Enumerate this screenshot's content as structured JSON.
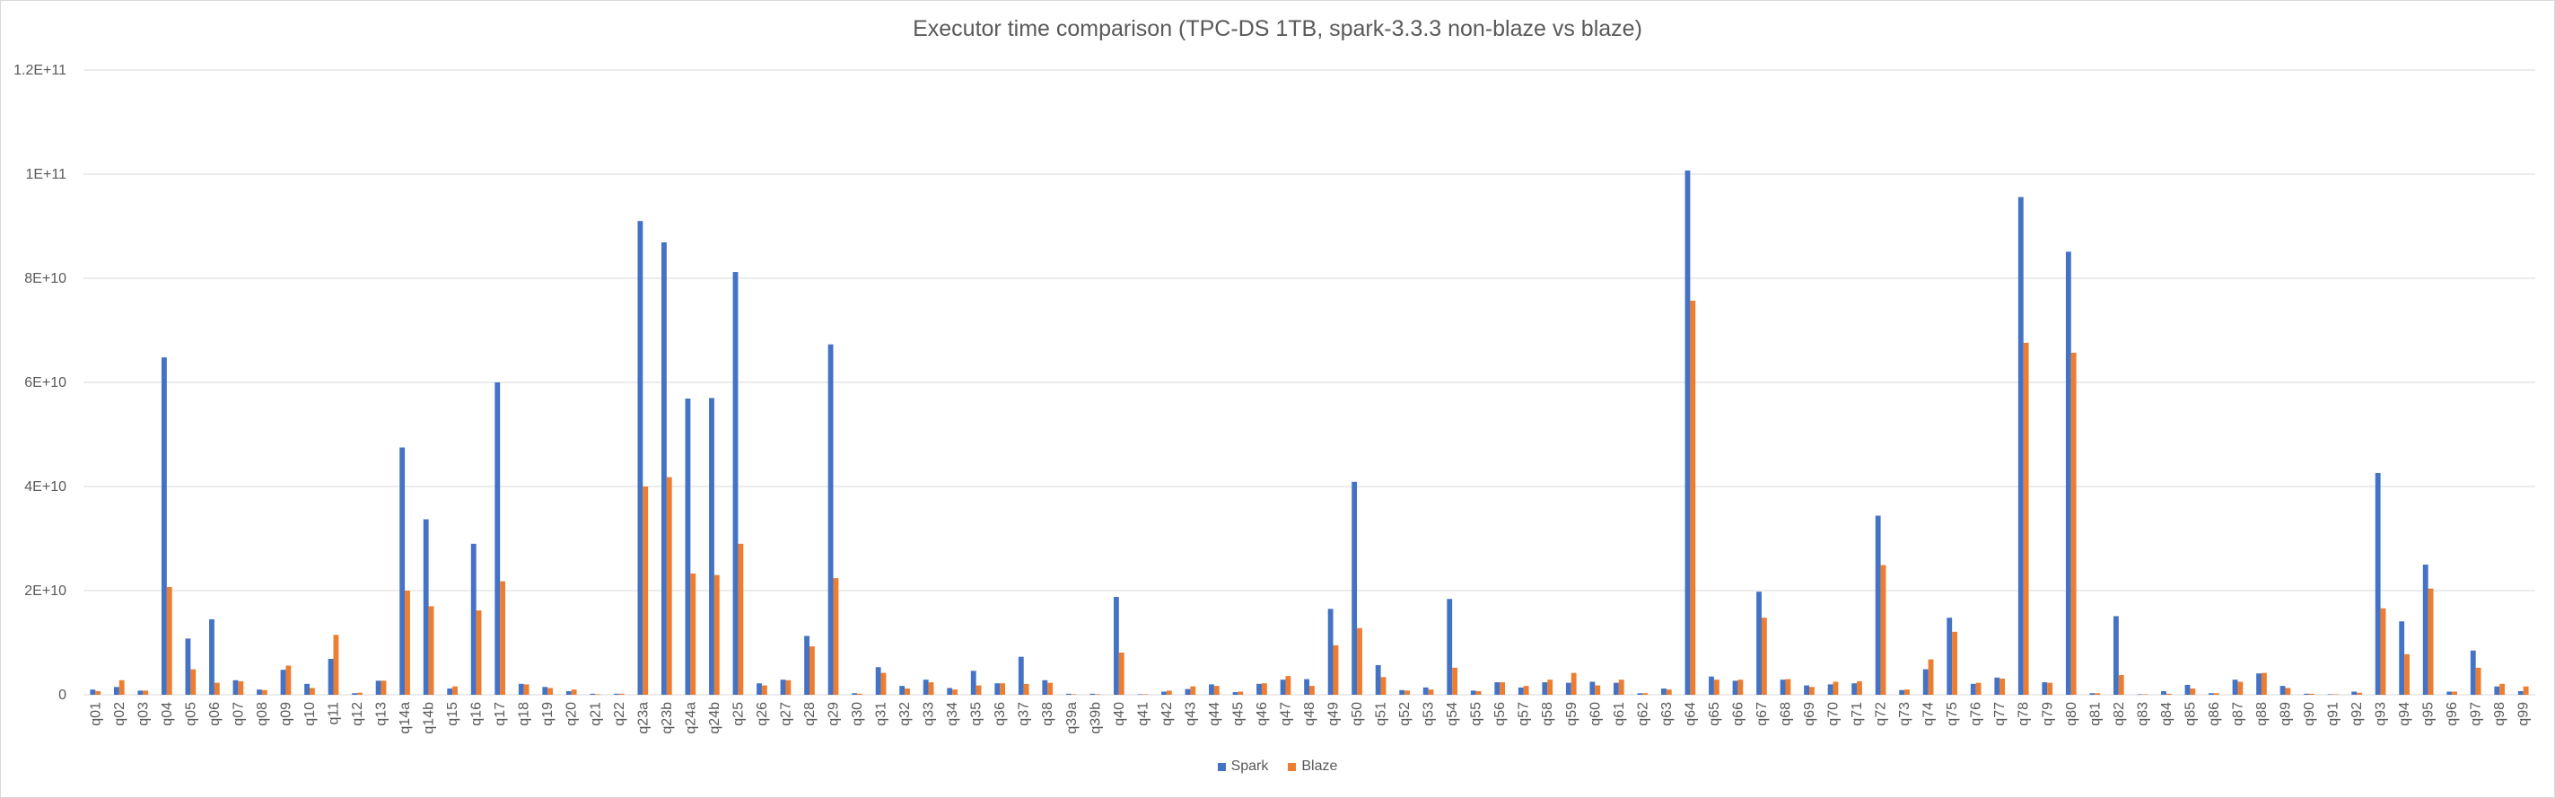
{
  "chart_data": {
    "type": "bar",
    "title": "Executor time comparison (TPC-DS 1TB, spark-3.3.3 non-blaze vs blaze)",
    "xlabel": "",
    "ylabel": "",
    "ylim": [
      0,
      120000000000
    ],
    "yticks": [
      {
        "value": 0,
        "label": "0"
      },
      {
        "value": 20000000000,
        "label": "2E+10"
      },
      {
        "value": 40000000000,
        "label": "4E+10"
      },
      {
        "value": 60000000000,
        "label": "6E+10"
      },
      {
        "value": 80000000000,
        "label": "8E+10"
      },
      {
        "value": 100000000000,
        "label": "1E+11"
      },
      {
        "value": 120000000000,
        "label": "1.2E+11"
      }
    ],
    "grid": true,
    "legend_position": "bottom",
    "categories": [
      "q01",
      "q02",
      "q03",
      "q04",
      "q05",
      "q06",
      "q07",
      "q08",
      "q09",
      "q10",
      "q11",
      "q12",
      "q13",
      "q14a",
      "q14b",
      "q15",
      "q16",
      "q17",
      "q18",
      "q19",
      "q20",
      "q21",
      "q22",
      "q23a",
      "q23b",
      "q24a",
      "q24b",
      "q25",
      "q26",
      "q27",
      "q28",
      "q29",
      "q30",
      "q31",
      "q32",
      "q33",
      "q34",
      "q35",
      "q36",
      "q37",
      "q38",
      "q39a",
      "q39b",
      "q40",
      "q41",
      "q42",
      "q43",
      "q44",
      "q45",
      "q46",
      "q47",
      "q48",
      "q49",
      "q50",
      "q51",
      "q52",
      "q53",
      "q54",
      "q55",
      "q56",
      "q57",
      "q58",
      "q59",
      "q60",
      "q61",
      "q62",
      "q63",
      "q64",
      "q65",
      "q66",
      "q67",
      "q68",
      "q69",
      "q70",
      "q71",
      "q72",
      "q73",
      "q74",
      "q75",
      "q76",
      "q77",
      "q78",
      "q79",
      "q80",
      "q81",
      "q82",
      "q83",
      "q84",
      "q85",
      "q86",
      "q87",
      "q88",
      "q89",
      "q90",
      "q91",
      "q92",
      "q93",
      "q94",
      "q95",
      "q96",
      "q97",
      "q98",
      "q99"
    ],
    "series": [
      {
        "name": "Spark",
        "color": "#4472c4",
        "values": [
          1000000000,
          1500000000,
          800000000,
          64800000000,
          10800000000,
          14500000000,
          2800000000,
          1000000000,
          4800000000,
          2100000000,
          6900000000,
          300000000,
          2700000000,
          47500000000,
          33700000000,
          1200000000,
          29000000000,
          60000000000,
          2100000000,
          1500000000,
          700000000,
          200000000,
          200000000,
          91000000000,
          86900000000,
          56900000000,
          57000000000,
          81200000000,
          2200000000,
          2900000000,
          11300000000,
          67300000000,
          300000000,
          5300000000,
          1700000000,
          2900000000,
          1300000000,
          4600000000,
          2200000000,
          7300000000,
          2800000000,
          200000000,
          200000000,
          18800000000,
          100000000,
          600000000,
          1100000000,
          2000000000,
          500000000,
          2100000000,
          2900000000,
          3000000000,
          16500000000,
          40900000000,
          5700000000,
          900000000,
          1400000000,
          18400000000,
          800000000,
          2400000000,
          1400000000,
          2400000000,
          2300000000,
          2500000000,
          2300000000,
          300000000,
          1200000000,
          100700000000,
          3500000000,
          2700000000,
          19800000000,
          2900000000,
          1800000000,
          2000000000,
          2200000000,
          34400000000,
          900000000,
          4900000000,
          14800000000,
          2100000000,
          3300000000,
          95600000000,
          2400000000,
          85100000000,
          300000000,
          15100000000,
          100000000,
          700000000,
          1900000000,
          300000000,
          2900000000,
          4100000000,
          1700000000,
          200000000,
          100000000,
          600000000,
          42600000000,
          14100000000,
          25000000000,
          600000000,
          8500000000,
          1600000000,
          700000000
        ]
      },
      {
        "name": "Blaze",
        "color": "#ed7d31",
        "values": [
          700000000,
          2800000000,
          800000000,
          20700000000,
          4900000000,
          2300000000,
          2600000000,
          900000000,
          5600000000,
          1300000000,
          11500000000,
          400000000,
          2700000000,
          20000000000,
          17000000000,
          1600000000,
          16200000000,
          21800000000,
          2000000000,
          1300000000,
          1000000000,
          100000000,
          200000000,
          40000000000,
          41800000000,
          23300000000,
          23000000000,
          29000000000,
          1800000000,
          2800000000,
          9300000000,
          22400000000,
          200000000,
          4200000000,
          1200000000,
          2400000000,
          1000000000,
          1800000000,
          2200000000,
          2100000000,
          2300000000,
          100000000,
          100000000,
          8100000000,
          100000000,
          800000000,
          1600000000,
          1700000000,
          600000000,
          2200000000,
          3600000000,
          1700000000,
          9500000000,
          12800000000,
          3400000000,
          800000000,
          1000000000,
          5200000000,
          700000000,
          2400000000,
          1700000000,
          2900000000,
          4200000000,
          1800000000,
          2900000000,
          300000000,
          1000000000,
          75700000000,
          2900000000,
          2900000000,
          14800000000,
          3000000000,
          1500000000,
          2500000000,
          2600000000,
          24900000000,
          1000000000,
          6800000000,
          12100000000,
          2300000000,
          3100000000,
          67600000000,
          2300000000,
          65700000000,
          300000000,
          3800000000,
          100000000,
          200000000,
          1200000000,
          300000000,
          2500000000,
          4200000000,
          1300000000,
          200000000,
          100000000,
          400000000,
          16600000000,
          7800000000,
          20400000000,
          600000000,
          5200000000,
          2100000000,
          1600000000
        ]
      }
    ]
  }
}
